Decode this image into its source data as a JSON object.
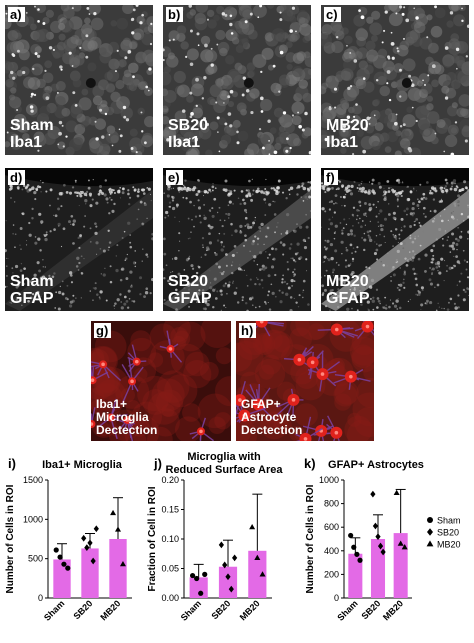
{
  "panels": {
    "a": {
      "label": "a)",
      "caption": "Sham\nIba1"
    },
    "b": {
      "label": "b)",
      "caption": "SB20\nIba1"
    },
    "c": {
      "label": "c)",
      "caption": "MB20\nIba1"
    },
    "d": {
      "label": "d)",
      "caption": "Sham\nGFAP"
    },
    "e": {
      "label": "e)",
      "caption": "SB20\nGFAP"
    },
    "f": {
      "label": "f)",
      "caption": "MB20\nGFAP"
    },
    "g": {
      "label": "g)",
      "caption": "Iba1+\nMicroglia\nDectection"
    },
    "h": {
      "label": "h)",
      "caption": "GFAP+\nAstrocyte\nDectection"
    }
  },
  "colors": {
    "bar": "#e36ae6",
    "marker": "#000000",
    "microscopy_bg": "#0b0b0b",
    "fluor_red": "#e0221c",
    "fluor_purple": "#7a3f9c"
  },
  "legend": {
    "items": [
      {
        "marker": "circle",
        "label": "Sham"
      },
      {
        "marker": "diamond",
        "label": "SB20"
      },
      {
        "marker": "triangle",
        "label": "MB20"
      }
    ]
  },
  "chart_data": [
    {
      "type": "bar",
      "panel_label": "i)",
      "title": "Iba1+ Microglia",
      "ylabel": "Number of Cells in ROI",
      "ylim": [
        0,
        1500
      ],
      "yticks": [
        "0",
        "500",
        "1000",
        "1500"
      ],
      "categories": [
        "Sham",
        "SB20",
        "MB20"
      ],
      "values": [
        490,
        630,
        750
      ],
      "error_upper": [
        690,
        820,
        1275
      ],
      "points": [
        [
          610,
          520,
          430,
          380
        ],
        [
          760,
          640,
          700,
          470,
          880
        ],
        [
          1080,
          870,
          430
        ]
      ],
      "markers": [
        "circle",
        "diamond",
        "triangle"
      ]
    },
    {
      "type": "bar",
      "panel_label": "j)",
      "title": "Microglia with\nReduced Surface Area",
      "ylabel": "Fraction of Cell in ROI",
      "ylim": [
        0,
        0.2
      ],
      "yticks": [
        "0.00",
        "0.05",
        "0.10",
        "0.15",
        "0.20"
      ],
      "categories": [
        "Sham",
        "SB20",
        "MB20"
      ],
      "values": [
        0.035,
        0.053,
        0.08
      ],
      "error_upper": [
        0.057,
        0.098,
        0.176
      ],
      "points": [
        [
          0.038,
          0.033,
          0.008,
          0.04
        ],
        [
          0.09,
          0.056,
          0.036,
          0.015,
          0.068
        ],
        [
          0.12,
          0.068,
          0.04
        ]
      ],
      "markers": [
        "circle",
        "diamond",
        "triangle"
      ]
    },
    {
      "type": "bar",
      "panel_label": "k)",
      "title": "GFAP+ Astrocytes",
      "ylabel": "Number of Cells in ROI",
      "ylim": [
        0,
        1000
      ],
      "yticks": [
        "0",
        "200",
        "400",
        "600",
        "800",
        "1000"
      ],
      "categories": [
        "Sham",
        "SB20",
        "MB20"
      ],
      "values": [
        375,
        500,
        550
      ],
      "error_upper": [
        510,
        705,
        920
      ],
      "points": [
        [
          530,
          430,
          370,
          320
        ],
        [
          880,
          610,
          520,
          440,
          390
        ],
        [
          890,
          460,
          430
        ]
      ],
      "markers": [
        "circle",
        "diamond",
        "triangle"
      ]
    }
  ]
}
